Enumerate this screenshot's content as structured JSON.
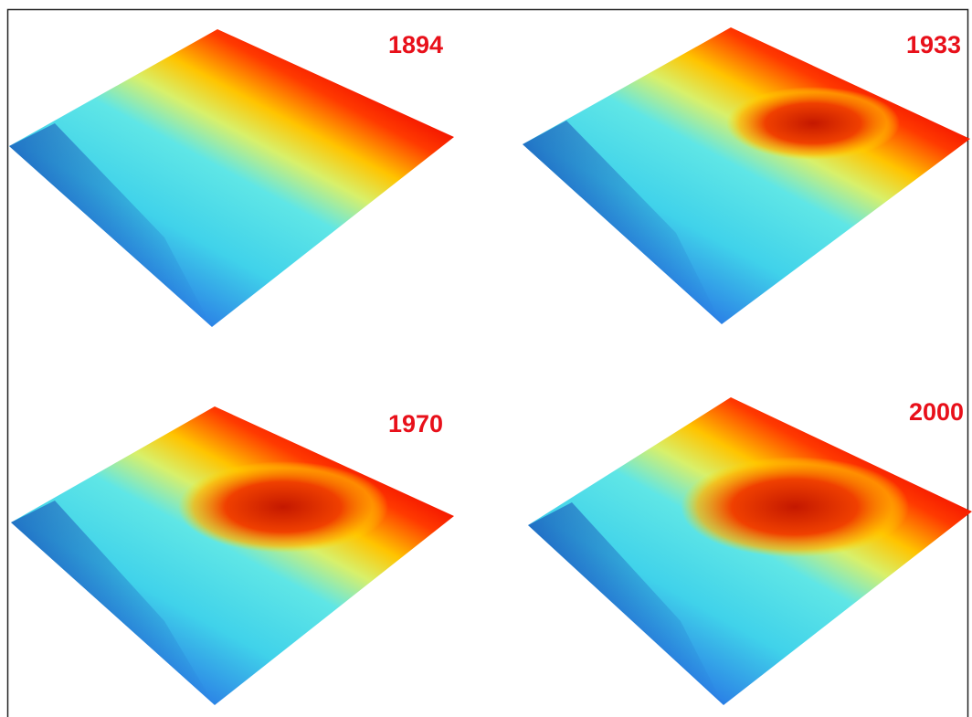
{
  "panels": [
    {
      "label": "1894"
    },
    {
      "label": "1933"
    },
    {
      "label": "1970"
    },
    {
      "label": "2000"
    }
  ]
}
